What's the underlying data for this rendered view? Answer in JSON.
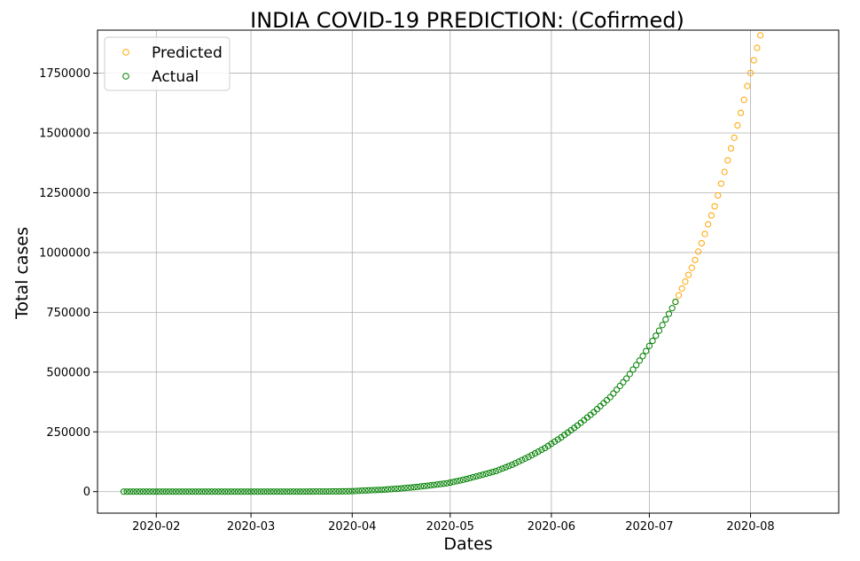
{
  "chart_data": {
    "type": "scatter",
    "title": "INDIA COVID-19 PREDICTION: (Cofirmed)",
    "xlabel": "Dates",
    "ylabel": "Total cases",
    "x_range": [
      "2020-01-14",
      "2020-08-28"
    ],
    "ylim": [
      -90000,
      1930000
    ],
    "grid": true,
    "legend_placement": "top-left",
    "x_ticks": [
      "2020-02-01",
      "2020-03-01",
      "2020-04-01",
      "2020-05-01",
      "2020-06-01",
      "2020-07-01",
      "2020-08-01"
    ],
    "x_tick_labels": [
      "2020-02",
      "2020-03",
      "2020-04",
      "2020-05",
      "2020-06",
      "2020-07",
      "2020-08"
    ],
    "y_ticks": [
      0,
      250000,
      500000,
      750000,
      1000000,
      1250000,
      1500000,
      1750000
    ],
    "y_tick_labels": [
      "0",
      "250000",
      "500000",
      "750000",
      "1000000",
      "1250000",
      "1500000",
      "1750000"
    ],
    "colors": {
      "predicted": "#ffa500",
      "actual": "#008000",
      "grid": "#b0b0b0"
    },
    "series": [
      {
        "name": "Predicted",
        "color": "#ffa500",
        "points": [
          [
            "2020-07-09",
            793802
          ],
          [
            "2020-07-10",
            820916
          ],
          [
            "2020-07-11",
            849553
          ],
          [
            "2020-07-12",
            878254
          ],
          [
            "2020-07-13",
            906752
          ],
          [
            "2020-07-14",
            936181
          ],
          [
            "2020-07-15",
            968876
          ],
          [
            "2020-07-16",
            1003832
          ],
          [
            "2020-07-17",
            1038716
          ],
          [
            "2020-07-18",
            1077618
          ],
          [
            "2020-07-19",
            1118043
          ],
          [
            "2020-07-20",
            1155191
          ],
          [
            "2020-07-21",
            1193078
          ],
          [
            "2020-07-22",
            1238635
          ],
          [
            "2020-07-23",
            1288108
          ],
          [
            "2020-07-24",
            1337024
          ],
          [
            "2020-07-25",
            1385522
          ],
          [
            "2020-07-26",
            1435453
          ],
          [
            "2020-07-27",
            1480073
          ],
          [
            "2020-07-28",
            1531669
          ],
          [
            "2020-07-29",
            1583792
          ],
          [
            "2020-07-30",
            1638870
          ],
          [
            "2020-07-31",
            1695988
          ],
          [
            "2020-08-01",
            1750723
          ],
          [
            "2020-08-02",
            1803695
          ],
          [
            "2020-08-03",
            1855745
          ],
          [
            "2020-08-04",
            1908254
          ]
        ]
      },
      {
        "name": "Actual",
        "color": "#008000",
        "points": [
          [
            "2020-01-22",
            0
          ],
          [
            "2020-01-30",
            1
          ],
          [
            "2020-02-03",
            3
          ],
          [
            "2020-03-02",
            5
          ],
          [
            "2020-03-04",
            28
          ],
          [
            "2020-03-10",
            56
          ],
          [
            "2020-03-15",
            113
          ],
          [
            "2020-03-20",
            244
          ],
          [
            "2020-03-25",
            657
          ],
          [
            "2020-03-30",
            1251
          ],
          [
            "2020-04-01",
            1998
          ],
          [
            "2020-04-05",
            4778
          ],
          [
            "2020-04-10",
            7600
          ],
          [
            "2020-04-15",
            12322
          ],
          [
            "2020-04-20",
            18539
          ],
          [
            "2020-04-25",
            26283
          ],
          [
            "2020-04-30",
            34863
          ],
          [
            "2020-05-05",
            49400
          ],
          [
            "2020-05-10",
            67161
          ],
          [
            "2020-05-15",
            85784
          ],
          [
            "2020-05-20",
            112359
          ],
          [
            "2020-05-25",
            144950
          ],
          [
            "2020-05-30",
            182143
          ],
          [
            "2020-06-04",
            226770
          ],
          [
            "2020-06-09",
            276583
          ],
          [
            "2020-06-14",
            332424
          ],
          [
            "2020-06-19",
            395048
          ],
          [
            "2020-06-24",
            473105
          ],
          [
            "2020-06-29",
            566840
          ],
          [
            "2020-07-04",
            673165
          ],
          [
            "2020-07-08",
            767296
          ],
          [
            "2020-07-09",
            793802
          ]
        ]
      }
    ]
  }
}
